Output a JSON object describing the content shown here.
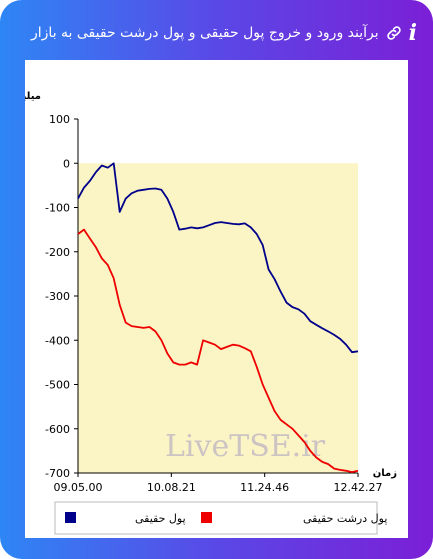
{
  "header": {
    "title": "برآیند ورود و خروج پول حقیقی و پول درشت حقیقی به بازار",
    "info_icon": "i",
    "link_icon": "link-icon"
  },
  "watermark": "LiveTSE.ir",
  "chart_data": {
    "type": "line",
    "ylabel": "میلیارد تومان",
    "xlabel": "زمان",
    "ylim": [
      -700,
      100
    ],
    "yticks": [
      100,
      0,
      -100,
      -200,
      -300,
      -400,
      -500,
      -600,
      -700
    ],
    "xticks": [
      "09.05.00",
      "10.08.21",
      "11.24.46",
      "12.42.27"
    ],
    "x": [
      "09.05",
      "09.09",
      "09.14",
      "09.19",
      "09.23",
      "09.28",
      "09.33",
      "09.37",
      "09.42",
      "09.46",
      "09.51",
      "09.55",
      "10.00",
      "10.05",
      "10.09",
      "10.14",
      "10.19",
      "10.23",
      "10.28",
      "10.32",
      "10.37",
      "10.42",
      "10.46",
      "10.51",
      "10.55",
      "11.00",
      "11.05",
      "11.09",
      "11.14",
      "11.18",
      "11.23",
      "11.28",
      "11.32",
      "11.37",
      "11.41",
      "11.46",
      "11.51",
      "11.55",
      "12.00",
      "12.05",
      "12.09",
      "12.14",
      "12.18",
      "12.23",
      "12.28",
      "12.32",
      "12.37",
      "12.42"
    ],
    "series": [
      {
        "name": "پول حقیقی",
        "color": "#00008b",
        "values": [
          -80,
          -55,
          -40,
          -20,
          -5,
          -10,
          0,
          -110,
          -80,
          -68,
          -62,
          -60,
          -58,
          -57,
          -60,
          -80,
          -110,
          -150,
          -148,
          -145,
          -147,
          -145,
          -140,
          -135,
          -133,
          -135,
          -137,
          -138,
          -136,
          -145,
          -160,
          -185,
          -240,
          -262,
          -290,
          -315,
          -325,
          -330,
          -340,
          -357,
          -365,
          -373,
          -380,
          -388,
          -397,
          -410,
          -427,
          -425
        ]
      },
      {
        "name": "پول درشت حقیقی",
        "color": "#ee0000",
        "values": [
          -160,
          -150,
          -170,
          -190,
          -215,
          -230,
          -260,
          -320,
          -360,
          -368,
          -370,
          -372,
          -370,
          -380,
          -400,
          -430,
          -450,
          -455,
          -455,
          -450,
          -455,
          -400,
          -405,
          -410,
          -420,
          -415,
          -410,
          -412,
          -418,
          -425,
          -460,
          -500,
          -530,
          -560,
          -580,
          -590,
          -600,
          -615,
          -630,
          -650,
          -665,
          -675,
          -680,
          -690,
          -693,
          -695,
          -698,
          -695
        ]
      }
    ],
    "legend": "bottom",
    "grid": false,
    "area_fill": "#fbf4c5"
  }
}
